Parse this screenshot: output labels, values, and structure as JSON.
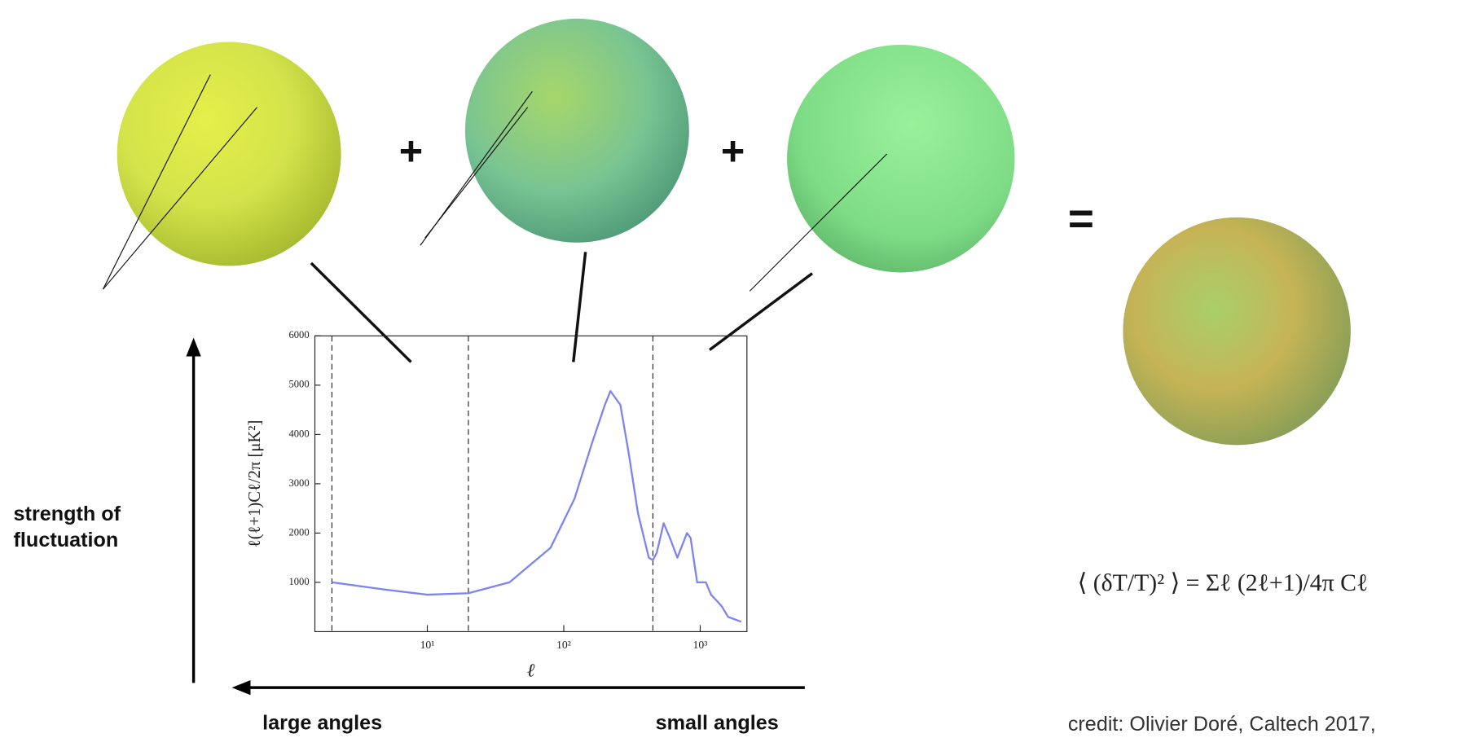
{
  "operators": [
    "+",
    "+",
    "="
  ],
  "axis_labels": {
    "vertical": [
      "strength of",
      "fluctuation"
    ],
    "left": "large angles",
    "right": "small angles"
  },
  "formula": "⟨ (δT/T)² ⟩ = Σℓ (2ℓ+1)/4π Cℓ",
  "credit": "credit: Olivier Doré, Caltech 2017,",
  "chart_data": {
    "type": "line",
    "xscale": "log",
    "xlabel": "ℓ",
    "ylabel": "ℓ(ℓ+1)Cℓ/2π [μK²]",
    "x": [
      2,
      5,
      10,
      20,
      40,
      80,
      120,
      160,
      200,
      220,
      260,
      300,
      350,
      420,
      450,
      480,
      540,
      600,
      680,
      800,
      850,
      950,
      1100,
      1200,
      1350,
      1450,
      1600,
      2000
    ],
    "series": [
      {
        "color": "#7b84f0",
        "values": [
          1000,
          850,
          750,
          780,
          1000,
          1700,
          2700,
          3800,
          4600,
          4880,
          4600,
          3600,
          2400,
          1500,
          1450,
          1600,
          2200,
          1900,
          1500,
          2000,
          1900,
          1000,
          1000,
          750,
          600,
          500,
          300,
          200
        ]
      }
    ],
    "xlim": [
      1.5,
      2200
    ],
    "ylim": [
      0,
      6000
    ],
    "xticks": [
      {
        "value": 10,
        "label": "10¹"
      },
      {
        "value": 100,
        "label": "10²"
      },
      {
        "value": 1000,
        "label": "10³"
      }
    ],
    "yticks": [
      1000,
      2000,
      3000,
      4000,
      5000,
      6000
    ],
    "vlines": [
      2,
      20,
      450
    ]
  }
}
